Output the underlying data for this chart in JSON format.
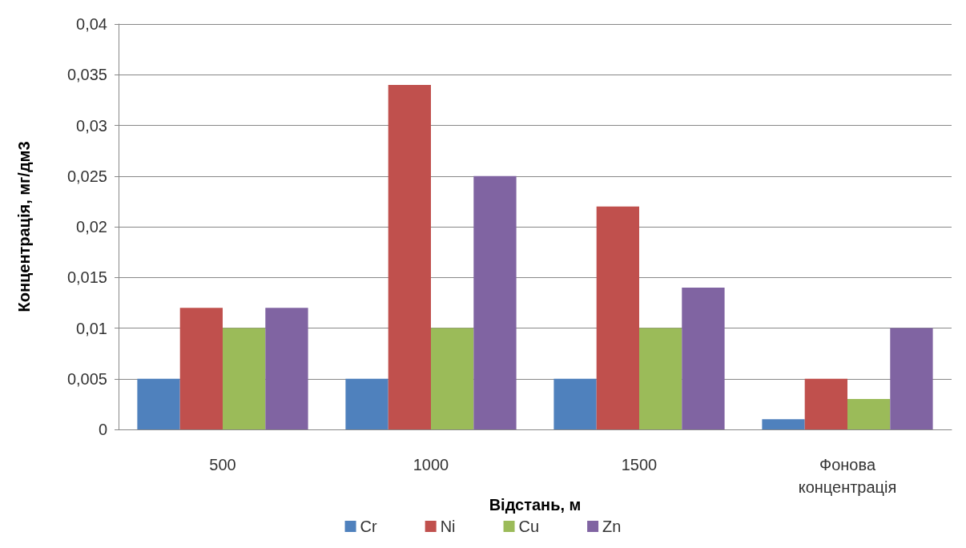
{
  "chart_data": {
    "type": "bar",
    "xlabel": "Відстань, м",
    "ylabel": "Концентрація, мг/дм3",
    "categories": [
      "500",
      "1000",
      "1500",
      "Фонова концентрація"
    ],
    "series": [
      {
        "name": "Cr",
        "color": "#4f81bd",
        "values": [
          0.005,
          0.005,
          0.005,
          0.001
        ]
      },
      {
        "name": "Ni",
        "color": "#c0504d",
        "values": [
          0.012,
          0.034,
          0.022,
          0.005
        ]
      },
      {
        "name": "Cu",
        "color": "#9bbb59",
        "values": [
          0.01,
          0.01,
          0.01,
          0.003
        ]
      },
      {
        "name": "Zn",
        "color": "#8064a2",
        "values": [
          0.012,
          0.025,
          0.014,
          0.01
        ]
      }
    ],
    "ylim": [
      0,
      0.04
    ],
    "yticks": [
      {
        "value": 0,
        "label": "0"
      },
      {
        "value": 0.005,
        "label": "0,005"
      },
      {
        "value": 0.01,
        "label": "0,01"
      },
      {
        "value": 0.015,
        "label": "0,015"
      },
      {
        "value": 0.02,
        "label": "0,02"
      },
      {
        "value": 0.025,
        "label": "0,025"
      },
      {
        "value": 0.03,
        "label": "0,03"
      },
      {
        "value": 0.035,
        "label": "0,035"
      },
      {
        "value": 0.04,
        "label": "0,04"
      }
    ],
    "grid": "y",
    "legend": "bottom"
  }
}
